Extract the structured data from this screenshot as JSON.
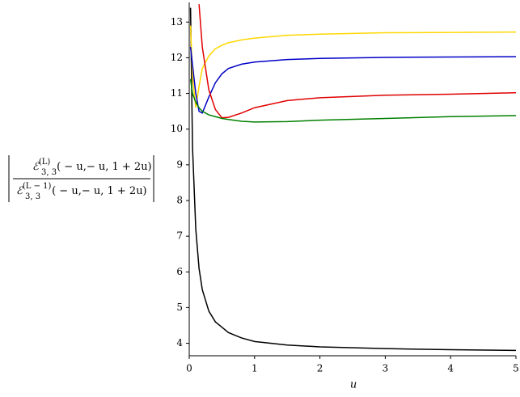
{
  "chart_data": {
    "type": "line",
    "x_label": "u",
    "y_label": {
      "numerator": {
        "symbol": "ℰ",
        "sup": "(L)",
        "sub": "3, 3",
        "args": "( − u,− u, 1 + 2u)"
      },
      "denominator": {
        "symbol": "ℰ",
        "sup": "(L − 1)",
        "sub": "3, 3",
        "args": "( − u,− u, 1 + 2u)"
      }
    },
    "x": [
      0.02,
      0.05,
      0.1,
      0.15,
      0.2,
      0.3,
      0.4,
      0.5,
      0.6,
      0.8,
      1,
      1.5,
      2,
      3,
      4,
      5
    ],
    "series": [
      {
        "color": "#000000",
        "values": [
          13.4,
          9.5,
          7.2,
          6.1,
          5.5,
          4.9,
          4.6,
          4.45,
          4.3,
          4.15,
          4.05,
          3.95,
          3.9,
          3.85,
          3.82,
          3.8
        ]
      },
      {
        "color": "#ffd700",
        "values": [
          12.9,
          11.5,
          10.6,
          11.2,
          11.7,
          12.05,
          12.25,
          12.35,
          12.42,
          12.5,
          12.55,
          12.63,
          12.66,
          12.7,
          12.71,
          12.72
        ]
      },
      {
        "color": "#0000c8",
        "values": [
          12.3,
          11.8,
          11.0,
          10.5,
          10.45,
          10.9,
          11.3,
          11.55,
          11.7,
          11.82,
          11.88,
          11.95,
          11.98,
          12.01,
          12.02,
          12.03
        ]
      },
      {
        "color": "#e00000",
        "values": [
          null,
          null,
          null,
          13.5,
          12.3,
          11.1,
          10.55,
          10.32,
          10.33,
          10.45,
          10.6,
          10.8,
          10.88,
          10.95,
          10.98,
          11.02
        ]
      },
      {
        "color": "#008000",
        "values": [
          11.4,
          11.0,
          10.75,
          10.6,
          10.5,
          10.4,
          10.35,
          10.3,
          10.27,
          10.22,
          10.2,
          10.21,
          10.25,
          10.3,
          10.35,
          10.38
        ]
      }
    ],
    "xlim": [
      0,
      5
    ],
    "ylim": [
      3.65,
      13.55
    ],
    "xticks": [
      0,
      1,
      2,
      3,
      4,
      5
    ],
    "yticks": [
      4,
      5,
      6,
      7,
      8,
      9,
      10,
      11,
      12,
      13
    ],
    "grid": false
  }
}
